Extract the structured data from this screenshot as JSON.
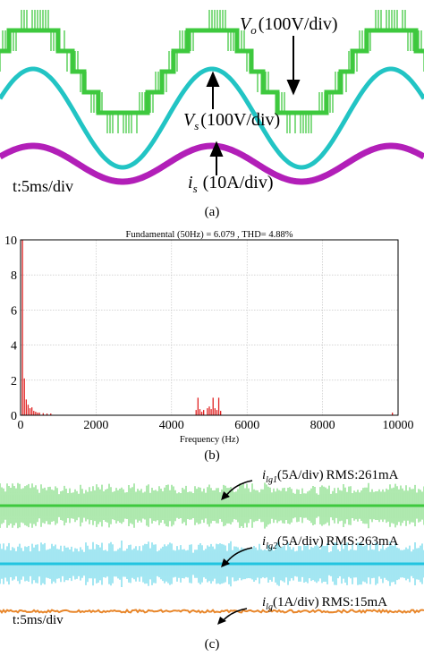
{
  "panel_a": {
    "caption": "(a)",
    "timebase": "t:5ms/div",
    "traces": [
      {
        "symbol": "V",
        "sub": "o",
        "scale": "(100V/div)",
        "color": "#3ec93e"
      },
      {
        "symbol": "V",
        "sub": "s",
        "scale": "(100V/div)",
        "color": "#22c4c4"
      },
      {
        "symbol": "i",
        "sub": "s",
        "scale": "(10A/div)",
        "color": "#b21fb8"
      }
    ]
  },
  "panel_b": {
    "caption": "(b)",
    "chart_data": {
      "type": "bar",
      "title": "Fundamental (50Hz) = 6.079 , THD= 4.88%",
      "xlabel": "Frequency (Hz)",
      "ylabel": "",
      "xlim": [
        0,
        10000
      ],
      "ylim": [
        0,
        10
      ],
      "xticks": [
        0,
        2000,
        4000,
        6000,
        8000,
        10000
      ],
      "yticks": [
        0,
        2,
        4,
        6,
        8,
        10
      ],
      "grid": true,
      "bar_color": "#e02424",
      "frequencies": [
        50,
        100,
        150,
        200,
        250,
        300,
        350,
        400,
        450,
        500,
        600,
        700,
        800,
        4650,
        4700,
        4750,
        4800,
        4850,
        4950,
        5000,
        5050,
        5100,
        5150,
        5200,
        5250,
        5300,
        9850
      ],
      "values": [
        10.0,
        2.1,
        0.9,
        0.6,
        0.4,
        0.45,
        0.25,
        0.2,
        0.15,
        0.15,
        0.12,
        0.1,
        0.1,
        0.3,
        1.0,
        0.35,
        0.2,
        0.3,
        0.4,
        0.5,
        0.35,
        1.0,
        0.4,
        0.3,
        1.0,
        0.25,
        0.15
      ]
    }
  },
  "panel_c": {
    "caption": "(c)",
    "timebase": "t:5ms/div",
    "traces": [
      {
        "symbol": "i",
        "sub": "lg1",
        "scale": "(5A/div)",
        "rms": "RMS:261mA",
        "color": "#3ec93e"
      },
      {
        "symbol": "i",
        "sub": "lg2",
        "scale": "(5A/div)",
        "rms": "RMS:263mA",
        "color": "#22c4e0"
      },
      {
        "symbol": "i",
        "sub": "lg",
        "scale": "(1A/div)",
        "rms": "RMS:15mA",
        "color": "#e8862a"
      }
    ]
  }
}
